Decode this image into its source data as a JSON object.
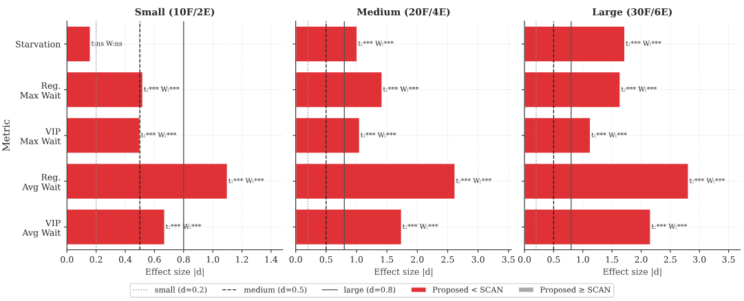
{
  "chart_data": [
    {
      "type": "bar",
      "orientation": "horizontal",
      "title": "Small (10F/2E)",
      "xlabel": "Effect size |d|",
      "ylabel": "Metric",
      "categories": [
        "Starvation",
        "Reg.\nMax Wait",
        "VIP\nMax Wait",
        "Reg.\nAvg Wait",
        "VIP\nAvg Wait"
      ],
      "series": [
        {
          "name": "Proposed < SCAN",
          "color": "#e03236",
          "values": [
            0.16,
            0.52,
            0.5,
            1.1,
            0.67
          ],
          "value_labels": [
            "t:ns W:ns",
            "t:*** W:***",
            "t:*** W:***",
            "t:*** W:***",
            "t:*** W:***"
          ]
        },
        {
          "name": "Proposed ≥ SCAN",
          "color": "#aaaaaa",
          "values": [
            null,
            null,
            null,
            null,
            null
          ]
        }
      ],
      "xlim": [
        0,
        1.48
      ],
      "xticks": [
        {
          "value": 0,
          "label": "0.0"
        },
        0.2,
        0.4,
        0.6,
        0.8,
        {
          "value": 1,
          "label": "1.0"
        },
        1.2,
        1.4
      ],
      "ref_lines": [
        {
          "axis": "x",
          "value": 0.2,
          "label": "small (d=0.2)",
          "color": "#888888",
          "line_style": "dotted"
        },
        {
          "axis": "x",
          "value": 0.5,
          "label": "medium (d=0.5)",
          "color": "#222222",
          "line_style": "dashed"
        },
        {
          "axis": "x",
          "value": 0.8,
          "label": "large (d=0.8)",
          "color": "#555555",
          "line_style": "solid"
        }
      ],
      "grid": true,
      "legend": "bottom"
    },
    {
      "type": "bar",
      "orientation": "horizontal",
      "title": "Medium (20F/4E)",
      "xlabel": "Effect size |d|",
      "categories": [
        null,
        null,
        null,
        null,
        null
      ],
      "series": [
        {
          "color": "#e03236",
          "values": [
            1.01,
            1.42,
            1.05,
            2.62,
            1.74
          ],
          "value_labels": [
            "t:*** W:***",
            "t:*** W:***",
            "t:*** W:***",
            "t:*** W:***",
            "t:*** W:***"
          ]
        }
      ],
      "xlim": [
        0,
        3.55
      ],
      "xticks": [
        {
          "value": 0,
          "label": "0.0"
        },
        0.5,
        {
          "value": 1,
          "label": "1.0"
        },
        1.5,
        {
          "value": 2,
          "label": "2.0"
        },
        2.5,
        {
          "value": 3,
          "label": "3.0"
        },
        3.5
      ],
      "ref_lines": [
        {
          "axis": "x",
          "value": 0.2,
          "color": "#888888",
          "line_style": "dotted"
        },
        {
          "axis": "x",
          "value": 0.5,
          "color": "#222222",
          "line_style": "dashed"
        },
        {
          "axis": "x",
          "value": 0.8,
          "color": "#555555",
          "line_style": "solid"
        }
      ],
      "grid": true,
      "tick_labels": "x"
    },
    {
      "type": "bar",
      "orientation": "horizontal",
      "title": "Large (30F/6E)",
      "xlabel": "Effect size |d|",
      "categories": [
        null,
        null,
        null,
        null,
        null
      ],
      "series": [
        {
          "color": "#e03236",
          "values": [
            1.72,
            1.64,
            1.13,
            2.81,
            2.16
          ],
          "value_labels": [
            "t:*** W:***",
            "t:*** W:***",
            "t:*** W:***",
            "t:*** W:***",
            "t:*** W:***"
          ]
        }
      ],
      "xlim": [
        0,
        3.7
      ],
      "xticks": [
        {
          "value": 0,
          "label": "0.0"
        },
        0.5,
        {
          "value": 1,
          "label": "1.0"
        },
        1.5,
        {
          "value": 2,
          "label": "2.0"
        },
        2.5,
        {
          "value": 3,
          "label": "3.0"
        },
        3.5
      ],
      "ref_lines": [
        {
          "axis": "x",
          "value": 0.2,
          "color": "#888888",
          "line_style": "dotted"
        },
        {
          "axis": "x",
          "value": 0.5,
          "color": "#222222",
          "line_style": "dashed"
        },
        {
          "axis": "x",
          "value": 0.8,
          "color": "#555555",
          "line_style": "solid"
        }
      ],
      "grid": true,
      "tick_labels": "x"
    }
  ]
}
